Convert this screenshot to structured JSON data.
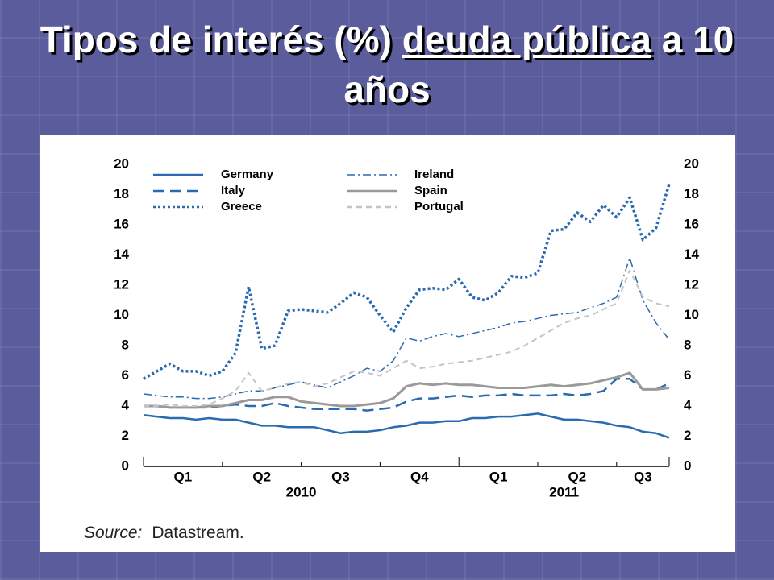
{
  "chart_data": {
    "type": "line",
    "title_parts": [
      "Tipos de interés (%)",
      "deuda pública",
      "a 10 años"
    ],
    "categories": [
      null,
      null,
      null,
      "Q1",
      null,
      null,
      null,
      null,
      null,
      "Q2",
      null,
      null,
      null,
      null,
      null,
      "Q3",
      null,
      null,
      null,
      null,
      null,
      "Q4",
      null,
      null,
      null,
      null,
      null,
      "Q1",
      null,
      null,
      null,
      null,
      null,
      "Q2",
      null,
      null,
      null,
      null,
      "Q3",
      null,
      null
    ],
    "year_labels": [
      "2010",
      "2011"
    ],
    "ylim": [
      0,
      20
    ],
    "yticks": [
      0,
      2,
      4,
      6,
      8,
      10,
      12,
      14,
      16,
      18,
      20
    ],
    "y2lim": [
      0,
      20
    ],
    "y2ticks": [
      0,
      2,
      4,
      6,
      8,
      10,
      12,
      14,
      16,
      18,
      20
    ],
    "series": [
      {
        "name": "Germany",
        "color": "#2a6ab0",
        "style": "solid",
        "values": [
          3.4,
          3.3,
          3.2,
          3.2,
          3.1,
          3.2,
          3.1,
          3.1,
          2.9,
          2.7,
          2.7,
          2.6,
          2.6,
          2.6,
          2.4,
          2.2,
          2.3,
          2.3,
          2.4,
          2.6,
          2.7,
          2.9,
          2.9,
          3.0,
          3.0,
          3.2,
          3.2,
          3.3,
          3.3,
          3.4,
          3.5,
          3.3,
          3.1,
          3.1,
          3.0,
          2.9,
          2.7,
          2.6,
          2.3,
          2.2,
          1.9
        ]
      },
      {
        "name": "Italy",
        "color": "#2a6ab0",
        "style": "longdash",
        "values": [
          4.0,
          4.0,
          3.9,
          3.9,
          3.9,
          3.9,
          4.0,
          4.1,
          4.0,
          4.0,
          4.2,
          4.0,
          3.9,
          3.8,
          3.8,
          3.8,
          3.8,
          3.7,
          3.8,
          3.9,
          4.3,
          4.5,
          4.5,
          4.6,
          4.7,
          4.6,
          4.7,
          4.7,
          4.8,
          4.7,
          4.7,
          4.7,
          4.8,
          4.7,
          4.8,
          5.0,
          5.8,
          5.8,
          5.1,
          5.1,
          5.5
        ]
      },
      {
        "name": "Greece",
        "color": "#2a6ab0",
        "style": "dotted",
        "values": [
          5.8,
          6.3,
          6.8,
          6.3,
          6.3,
          6.0,
          6.3,
          7.5,
          11.9,
          7.8,
          8.0,
          10.3,
          10.4,
          10.3,
          10.2,
          10.8,
          11.5,
          11.2,
          10.0,
          8.9,
          10.5,
          11.7,
          11.8,
          11.7,
          12.4,
          11.2,
          11.0,
          11.5,
          12.6,
          12.5,
          12.8,
          15.6,
          15.7,
          16.8,
          16.2,
          17.3,
          16.5,
          17.8,
          15.0,
          15.8,
          18.7
        ]
      },
      {
        "name": "Ireland",
        "color": "#2a6ab0",
        "style": "dashdot",
        "values": [
          4.8,
          4.7,
          4.6,
          4.6,
          4.5,
          4.5,
          4.6,
          4.8,
          5.0,
          5.0,
          5.2,
          5.4,
          5.6,
          5.4,
          5.2,
          5.6,
          6.0,
          6.5,
          6.3,
          7.0,
          8.5,
          8.3,
          8.6,
          8.8,
          8.6,
          8.8,
          9.0,
          9.2,
          9.5,
          9.6,
          9.8,
          10.0,
          10.1,
          10.2,
          10.5,
          10.8,
          11.2,
          13.8,
          11.0,
          9.5,
          8.4
        ]
      },
      {
        "name": "Spain",
        "color": "#9a9a9a",
        "style": "solid",
        "values": [
          4.0,
          4.0,
          3.9,
          3.9,
          3.9,
          4.0,
          4.0,
          4.2,
          4.4,
          4.4,
          4.6,
          4.6,
          4.3,
          4.2,
          4.1,
          4.0,
          4.0,
          4.1,
          4.2,
          4.5,
          5.3,
          5.5,
          5.4,
          5.5,
          5.4,
          5.4,
          5.3,
          5.2,
          5.2,
          5.2,
          5.3,
          5.4,
          5.3,
          5.4,
          5.5,
          5.7,
          5.9,
          6.2,
          5.1,
          5.1,
          5.2
        ]
      },
      {
        "name": "Portugal",
        "color": "#c4c4c4",
        "style": "dashed",
        "values": [
          4.0,
          4.0,
          4.1,
          4.0,
          4.0,
          4.1,
          4.5,
          5.0,
          6.2,
          5.0,
          5.2,
          5.5,
          5.6,
          5.3,
          5.5,
          5.9,
          6.3,
          6.2,
          6.0,
          6.5,
          7.0,
          6.5,
          6.6,
          6.8,
          6.9,
          7.0,
          7.2,
          7.4,
          7.6,
          8.0,
          8.5,
          9.0,
          9.5,
          9.8,
          10.0,
          10.4,
          10.8,
          13.0,
          11.2,
          10.8,
          10.6
        ]
      }
    ],
    "source": {
      "label": "Source:",
      "text": "Datastream."
    }
  }
}
